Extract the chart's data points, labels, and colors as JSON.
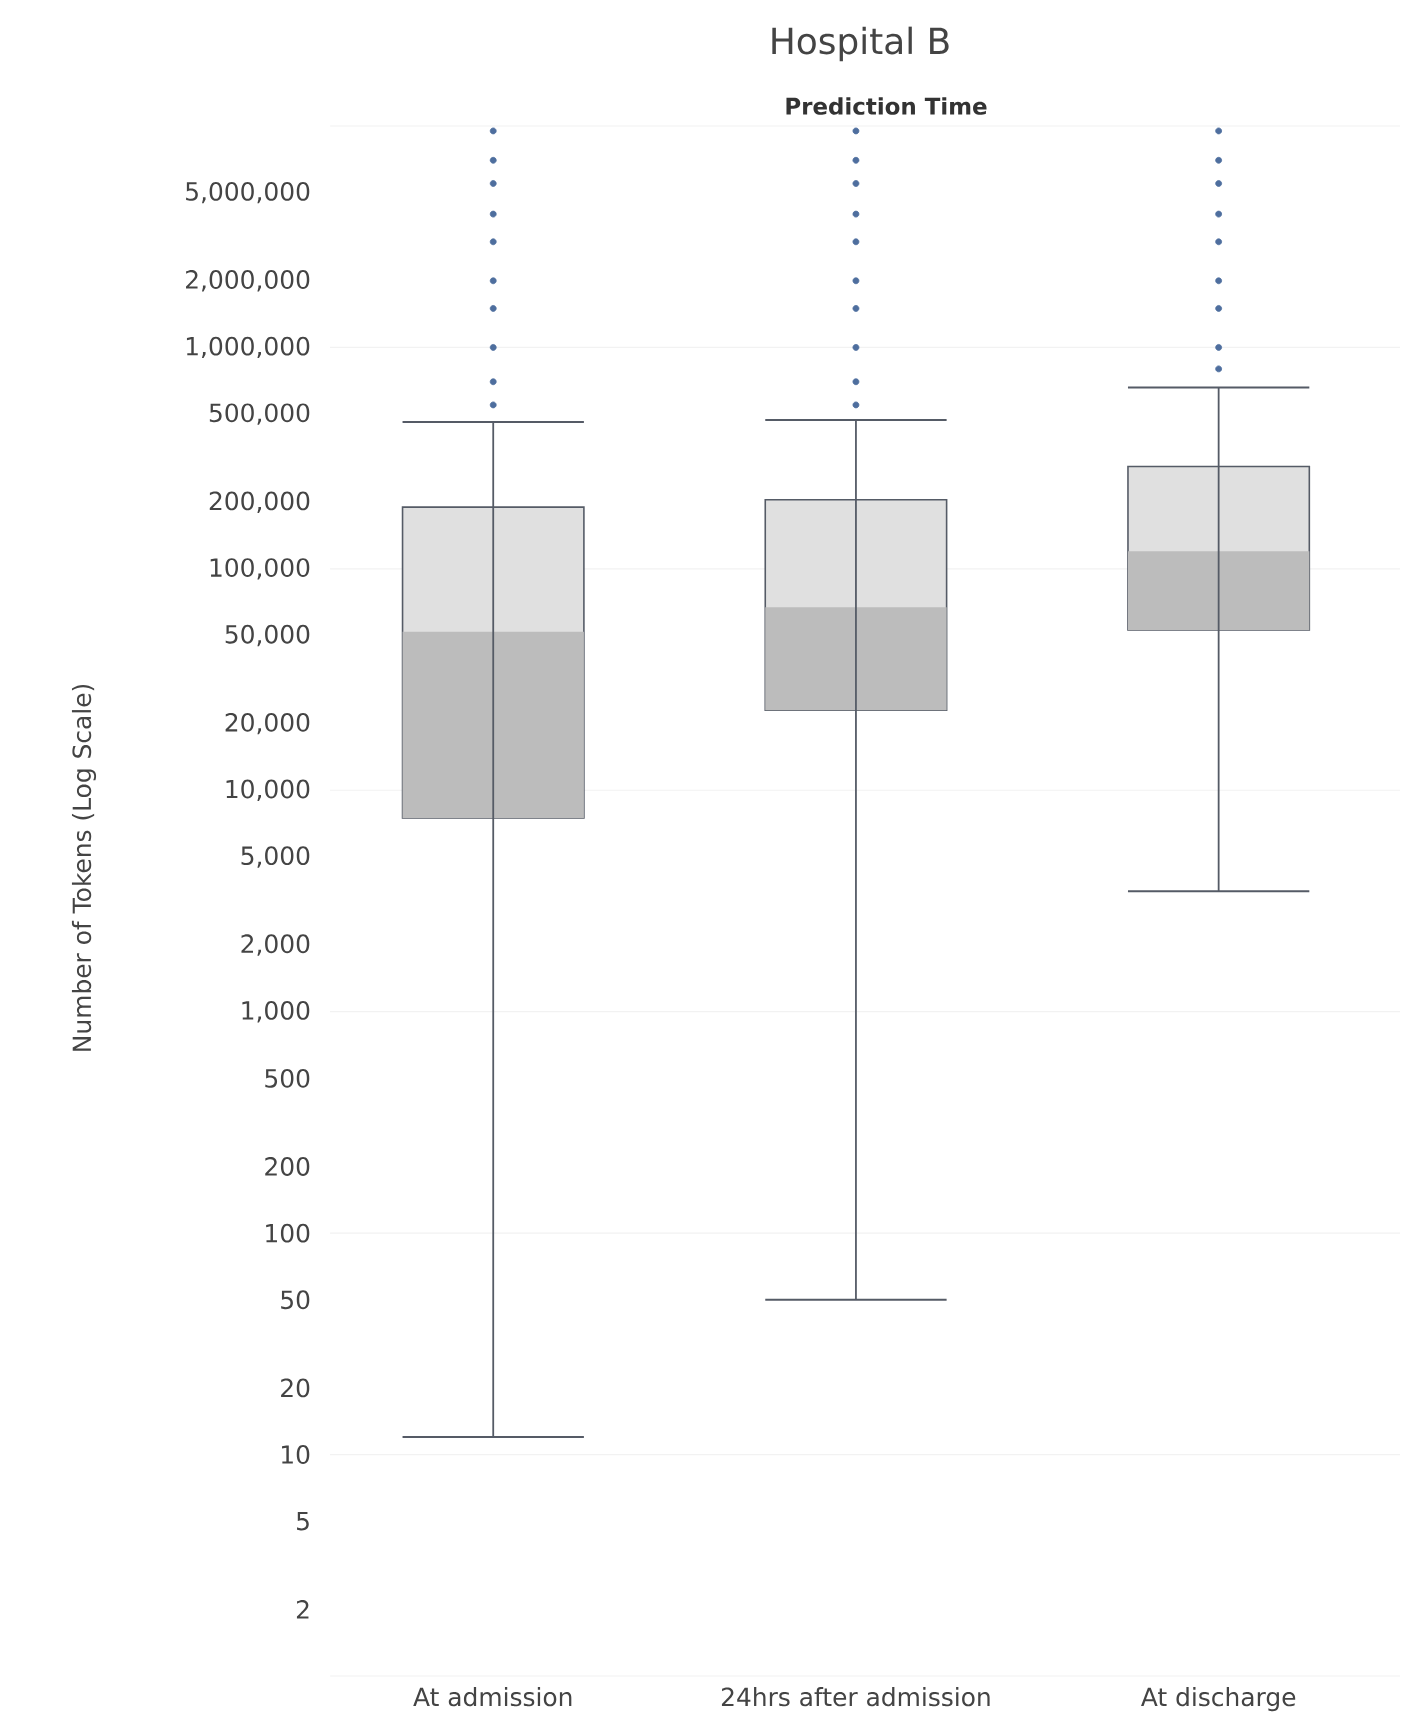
{
  "chart_data": {
    "type": "box",
    "title": "Hospital B",
    "subtitle": "Prediction Time",
    "ylabel": "Number of Tokens (Log Scale)",
    "categories": [
      "At admission",
      "24hrs after admission",
      "At discharge"
    ],
    "log": "y",
    "grid": "y",
    "ylim": [
      1,
      10000000
    ],
    "yticks": [
      2,
      5,
      10,
      20,
      50,
      100,
      200,
      500,
      {
        "value": 1000,
        "label": "1,000"
      },
      {
        "value": 2000,
        "label": "2,000"
      },
      {
        "value": 5000,
        "label": "5,000"
      },
      {
        "value": 10000,
        "label": "10,000"
      },
      {
        "value": 20000,
        "label": "20,000"
      },
      {
        "value": 50000,
        "label": "50,000"
      },
      {
        "value": 100000,
        "label": "100,000"
      },
      {
        "value": 200000,
        "label": "200,000"
      },
      {
        "value": 500000,
        "label": "500,000"
      },
      {
        "value": 1000000,
        "label": "1,000,000"
      },
      {
        "value": 2000000,
        "label": "2,000,000"
      },
      {
        "value": 5000000,
        "label": "5,000,000"
      }
    ],
    "series": [
      {
        "type": "box",
        "color": "#e0e0e0",
        "colors": [
          "#bcbcbc",
          "#bcbcbc",
          "#bcbcbc"
        ],
        "boxes": [
          {
            "low": 12,
            "q1": 7500,
            "median": 52000,
            "q3": 190000,
            "high": 460000
          },
          {
            "low": 50,
            "q1": 23000,
            "median": 67000,
            "q3": 205000,
            "high": 470000
          },
          {
            "low": 3500,
            "q1": 53000,
            "median": 120000,
            "q3": 290000,
            "high": 660000
          }
        ]
      },
      {
        "type": "scatter",
        "color": "#4e6e9e",
        "x": [
          "At admission",
          "At admission",
          "At admission",
          "At admission",
          "At admission",
          "At admission",
          "At admission",
          "At admission",
          "At admission",
          "At admission",
          "24hrs after admission",
          "24hrs after admission",
          "24hrs after admission",
          "24hrs after admission",
          "24hrs after admission",
          "24hrs after admission",
          "24hrs after admission",
          "24hrs after admission",
          "24hrs after admission",
          "24hrs after admission",
          "At discharge",
          "At discharge",
          "At discharge",
          "At discharge",
          "At discharge",
          "At discharge",
          "At discharge",
          "At discharge",
          "At discharge"
        ],
        "values": [
          550000,
          700000,
          1000000,
          1500000,
          2000000,
          3000000,
          4000000,
          5500000,
          7000000,
          9500000,
          550000,
          700000,
          1000000,
          1500000,
          2000000,
          3000000,
          4000000,
          5500000,
          7000000,
          9500000,
          800000,
          1000000,
          1500000,
          2000000,
          3000000,
          4000000,
          5500000,
          7000000,
          9500000
        ]
      }
    ]
  }
}
